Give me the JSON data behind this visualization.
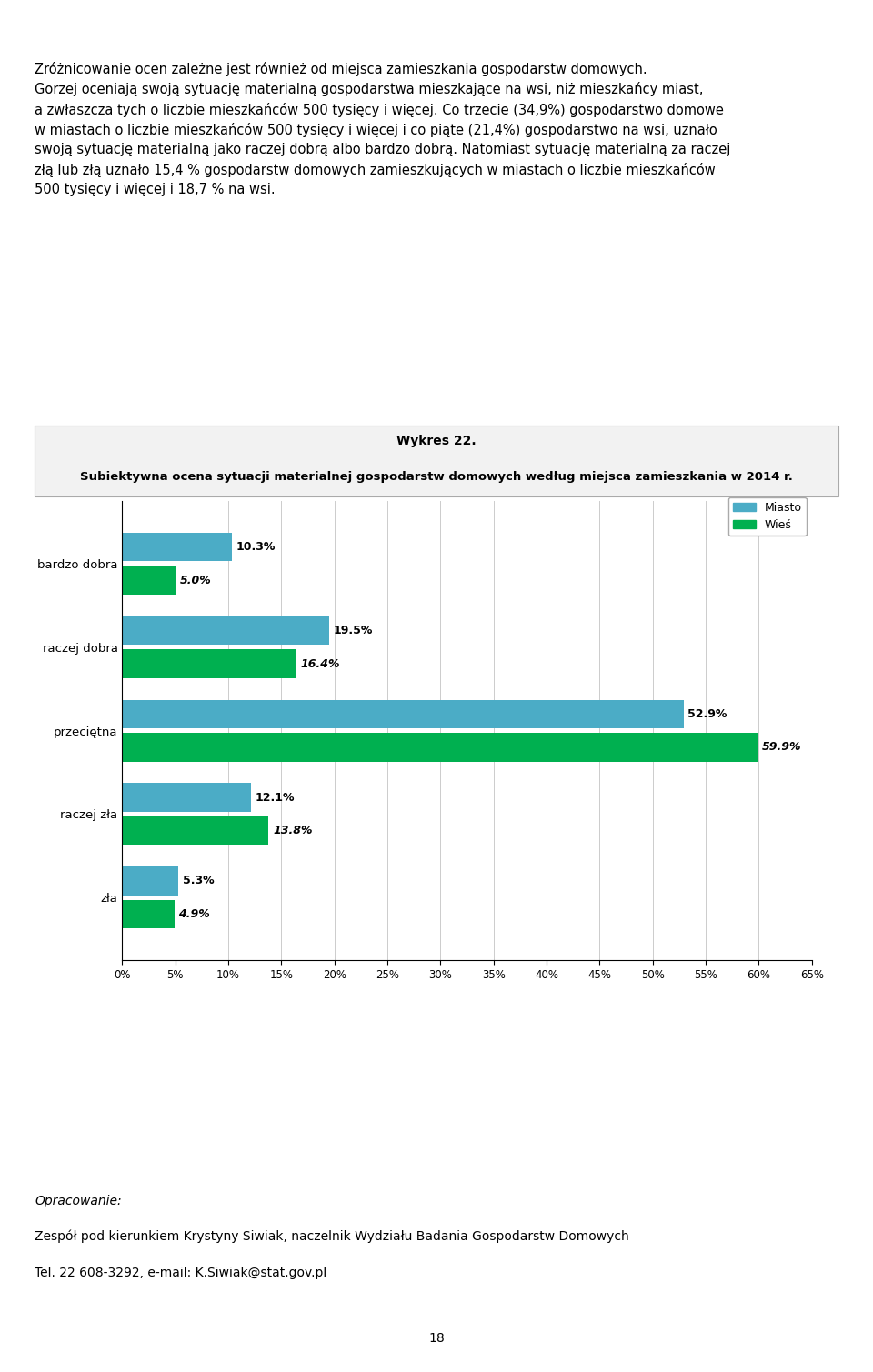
{
  "title_line1": "Wykres 22.",
  "title_line2": "Subiektywna ocena sytuacji materialnej gospodarstw domowych według miejsca zamieszkania w 2014 r.",
  "categories": [
    "bardzo dobra",
    "raczej dobra",
    "przeciętna",
    "raczej zła",
    "zła"
  ],
  "miasto_values": [
    10.3,
    19.5,
    52.9,
    12.1,
    5.3
  ],
  "wies_values": [
    5.0,
    16.4,
    59.9,
    13.8,
    4.9
  ],
  "miasto_color": "#4bacc6",
  "wies_color": "#00b050",
  "xlim": [
    0,
    65
  ],
  "xticks": [
    0,
    5,
    10,
    15,
    20,
    25,
    30,
    35,
    40,
    45,
    50,
    55,
    60,
    65
  ],
  "legend_labels": [
    "Miasto",
    "Wieś"
  ],
  "body_text_lines": [
    "Zróżnicowanie ocen zależne jest również od miejsca zamieszkania gospodarstw domowych.",
    "Gorzej oceniają swoją sytuację materialną gospodarstwa mieszkające na wsi, niż mieszkańcy miast,",
    "a zwłaszcza tych o liczbie mieszkańców 500 tysięcy i więcej. Co trzecie (34,9%) gospodarstwo domowe",
    "w miastach o liczbie mieszkańców 500 tysięcy i więcej i co piąte (21,4%) gospodarstwo na wsi, uznało",
    "swoją sytuację materialną jako raczej dobrą albo bardzo dobrą. Natomiast sytuację materialną za raczej",
    "złą lub złą uznało 15,4 % gospodarstw domowych zamieszkujących w miastach o liczbie mieszkańców",
    "500 tysięcy i więcej i 18,7 % na wsi."
  ],
  "footer_italic": "Opracowanie:",
  "footer_line2": "Zespół pod kierunkiem Krystyny Siwiak, naczelnik Wydziału Badania Gospodarstw Domowych",
  "footer_line3": "Tel. 22 608-3292, e-mail: K.Siwiak@stat.gov.pl",
  "footer_underline": "K.Siwiak@stat.gov.pl",
  "page_number": "18",
  "background_color": "#ffffff",
  "grid_color": "#cccccc",
  "box_bg_color": "#f2f2f2",
  "box_edge_color": "#aaaaaa"
}
